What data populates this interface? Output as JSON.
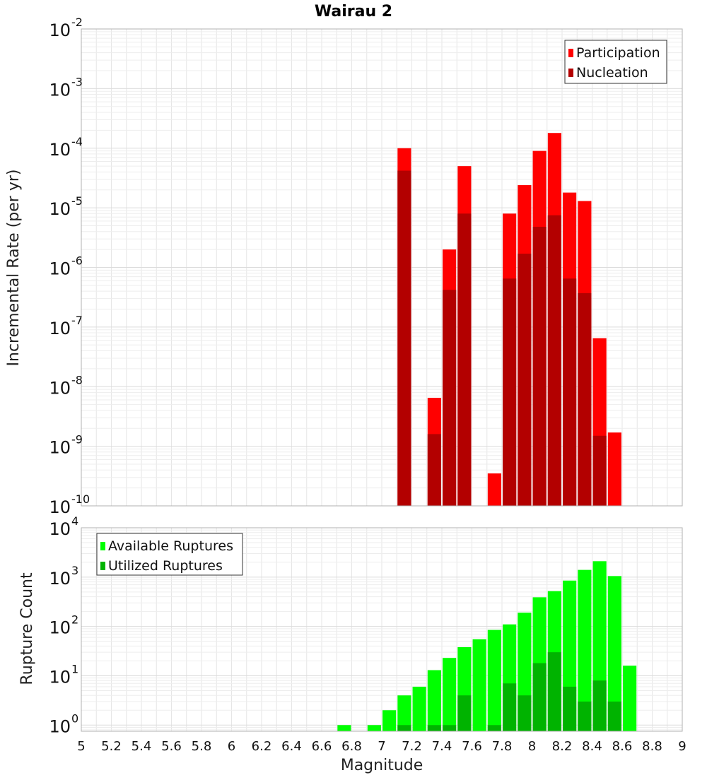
{
  "chart_data": [
    {
      "type": "bar",
      "title": "Wairau 2",
      "xlabel": "",
      "ylabel": "Incremental Rate (per yr)",
      "xlim": [
        5,
        9
      ],
      "ylim": [
        1e-10,
        0.01
      ],
      "yscale": "log",
      "grid": true,
      "legend_position": "top-right",
      "bar_width": 0.09,
      "y_ticks": [
        {
          "value": 1e-10,
          "base": "10",
          "exp": "-10"
        },
        {
          "value": 1e-09,
          "base": "10",
          "exp": "-9"
        },
        {
          "value": 1e-08,
          "base": "10",
          "exp": "-8"
        },
        {
          "value": 1e-07,
          "base": "10",
          "exp": "-7"
        },
        {
          "value": 1e-06,
          "base": "10",
          "exp": "-6"
        },
        {
          "value": 1e-05,
          "base": "10",
          "exp": "-5"
        },
        {
          "value": 0.0001,
          "base": "10",
          "exp": "-4"
        },
        {
          "value": 0.001,
          "base": "10",
          "exp": "-3"
        },
        {
          "value": 0.01,
          "base": "10",
          "exp": "-2"
        }
      ],
      "series": [
        {
          "name": "Participation",
          "color": "#ff0000",
          "points": [
            {
              "x": 7.15,
              "y": 0.0001
            },
            {
              "x": 7.35,
              "y": 6.5e-09
            },
            {
              "x": 7.45,
              "y": 2e-06
            },
            {
              "x": 7.55,
              "y": 5e-05
            },
            {
              "x": 7.75,
              "y": 3.5e-10
            },
            {
              "x": 7.85,
              "y": 8e-06
            },
            {
              "x": 7.95,
              "y": 2.4e-05
            },
            {
              "x": 8.05,
              "y": 9e-05
            },
            {
              "x": 8.15,
              "y": 0.00018
            },
            {
              "x": 8.25,
              "y": 1.8e-05
            },
            {
              "x": 8.35,
              "y": 1.3e-05
            },
            {
              "x": 8.45,
              "y": 6.5e-08
            },
            {
              "x": 8.55,
              "y": 1.7e-09
            }
          ]
        },
        {
          "name": "Nucleation",
          "color": "#b30000",
          "points": [
            {
              "x": 7.15,
              "y": 4.2e-05
            },
            {
              "x": 7.35,
              "y": 1.6e-09
            },
            {
              "x": 7.45,
              "y": 4.2e-07
            },
            {
              "x": 7.55,
              "y": 8e-06
            },
            {
              "x": 7.85,
              "y": 6.5e-07
            },
            {
              "x": 7.95,
              "y": 1.7e-06
            },
            {
              "x": 8.05,
              "y": 4.8e-06
            },
            {
              "x": 8.15,
              "y": 7.5e-06
            },
            {
              "x": 8.25,
              "y": 6.5e-07
            },
            {
              "x": 8.35,
              "y": 3.7e-07
            },
            {
              "x": 8.45,
              "y": 1.5e-09
            }
          ]
        }
      ]
    },
    {
      "type": "bar",
      "title": "",
      "xlabel": "Magnitude",
      "ylabel": "Rupture Count",
      "xlim": [
        5,
        9
      ],
      "ylim": [
        0.75,
        10000
      ],
      "yscale": "log",
      "grid": true,
      "legend_position": "top-left",
      "bar_width": 0.09,
      "x_ticks": [
        "5",
        "5.2",
        "5.4",
        "5.6",
        "5.8",
        "6",
        "6.2",
        "6.4",
        "6.6",
        "6.8",
        "7",
        "7.2",
        "7.4",
        "7.6",
        "7.8",
        "8",
        "8.2",
        "8.4",
        "8.6",
        "8.8",
        "9"
      ],
      "y_ticks": [
        {
          "value": 1,
          "base": "10",
          "exp": "0"
        },
        {
          "value": 10,
          "base": "10",
          "exp": "1"
        },
        {
          "value": 100,
          "base": "10",
          "exp": "2"
        },
        {
          "value": 1000,
          "base": "10",
          "exp": "3"
        },
        {
          "value": 10000,
          "base": "10",
          "exp": "4"
        }
      ],
      "series": [
        {
          "name": "Available Ruptures",
          "color": "#00ff00",
          "points": [
            {
              "x": 6.75,
              "y": 1
            },
            {
              "x": 6.95,
              "y": 1
            },
            {
              "x": 7.05,
              "y": 2
            },
            {
              "x": 7.15,
              "y": 4
            },
            {
              "x": 7.25,
              "y": 6
            },
            {
              "x": 7.35,
              "y": 13
            },
            {
              "x": 7.45,
              "y": 23
            },
            {
              "x": 7.55,
              "y": 38
            },
            {
              "x": 7.65,
              "y": 55
            },
            {
              "x": 7.75,
              "y": 85
            },
            {
              "x": 7.85,
              "y": 110
            },
            {
              "x": 7.95,
              "y": 190
            },
            {
              "x": 8.05,
              "y": 390
            },
            {
              "x": 8.15,
              "y": 520
            },
            {
              "x": 8.25,
              "y": 850
            },
            {
              "x": 8.35,
              "y": 1400
            },
            {
              "x": 8.45,
              "y": 2100
            },
            {
              "x": 8.55,
              "y": 1050
            },
            {
              "x": 8.65,
              "y": 16
            }
          ]
        },
        {
          "name": "Utilized Ruptures",
          "color": "#00b300",
          "points": [
            {
              "x": 7.15,
              "y": 1
            },
            {
              "x": 7.35,
              "y": 1
            },
            {
              "x": 7.45,
              "y": 1
            },
            {
              "x": 7.55,
              "y": 4
            },
            {
              "x": 7.75,
              "y": 1
            },
            {
              "x": 7.85,
              "y": 7
            },
            {
              "x": 7.95,
              "y": 4
            },
            {
              "x": 8.05,
              "y": 18
            },
            {
              "x": 8.15,
              "y": 30
            },
            {
              "x": 8.25,
              "y": 6
            },
            {
              "x": 8.35,
              "y": 3
            },
            {
              "x": 8.45,
              "y": 8
            },
            {
              "x": 8.55,
              "y": 3
            }
          ]
        }
      ]
    }
  ]
}
